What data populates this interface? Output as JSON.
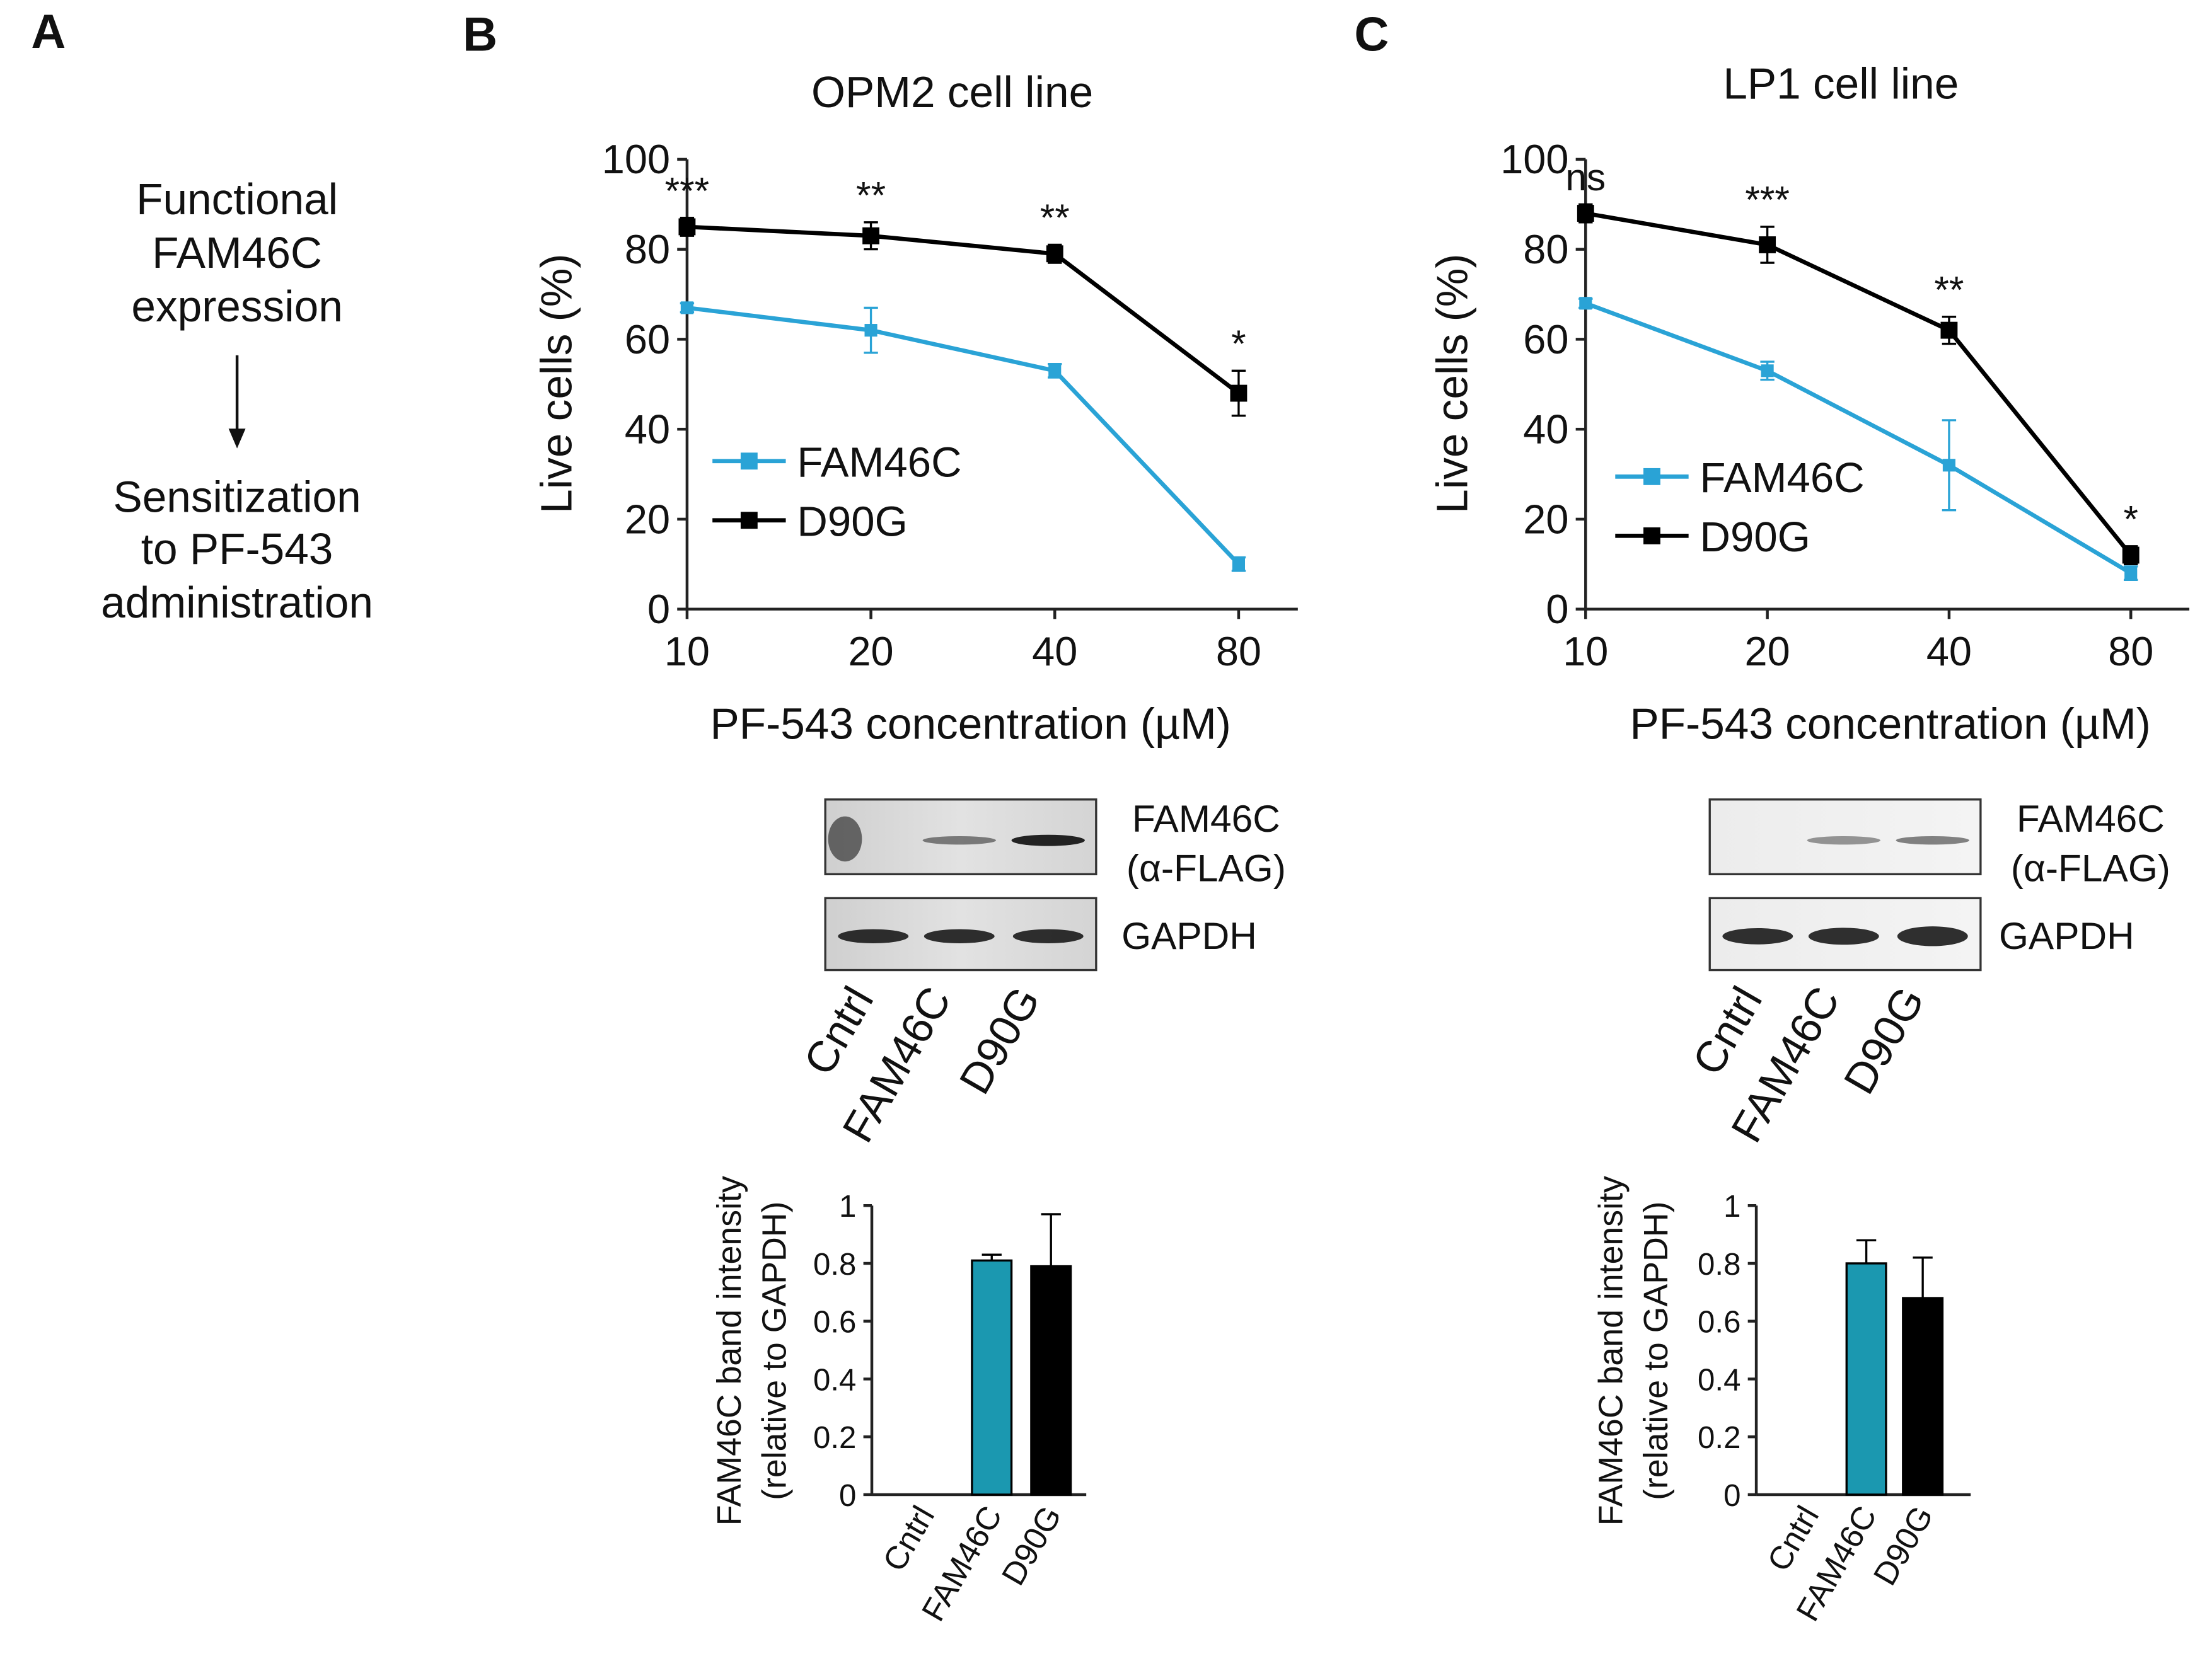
{
  "panel_labels": [
    "A",
    "B",
    "C"
  ],
  "panel_a": {
    "lines": [
      "Functional",
      "FAM46C",
      "expression",
      "Sensitization",
      "to PF-543",
      "administration"
    ]
  },
  "chart_data": [
    {
      "type": "line",
      "title": "OPM2 cell line",
      "x_label": "PF-543 concentration (µM)",
      "y_label": "Live cells (%)",
      "x": [
        10,
        20,
        40,
        80
      ],
      "xscale": "log",
      "xlim": [
        10,
        100
      ],
      "xticks": [
        10,
        20,
        40,
        80
      ],
      "ylim": [
        0,
        100
      ],
      "yticks": [
        0,
        20,
        40,
        60,
        80,
        100
      ],
      "series": [
        {
          "name": "FAM46C",
          "color": "#2aa3d6",
          "values": [
            67,
            62,
            53,
            10
          ],
          "errors": [
            1,
            5,
            1.5,
            1.5
          ]
        },
        {
          "name": "D90G",
          "color": "#000000",
          "values": [
            85,
            83,
            79,
            48
          ],
          "errors": [
            2,
            3,
            2,
            5
          ]
        }
      ],
      "annotations": [
        "***",
        "**",
        "**",
        "*"
      ]
    },
    {
      "type": "line",
      "title": "LP1 cell line",
      "x_label": "PF-543 concentration (µM)",
      "y_label": "Live cells (%)",
      "x": [
        10,
        20,
        40,
        80
      ],
      "xscale": "log",
      "xlim": [
        10,
        100
      ],
      "xticks": [
        10,
        20,
        40,
        80
      ],
      "ylim": [
        0,
        100
      ],
      "yticks": [
        0,
        20,
        40,
        60,
        80,
        100
      ],
      "series": [
        {
          "name": "FAM46C",
          "color": "#2aa3d6",
          "values": [
            68,
            53,
            32,
            8
          ],
          "errors": [
            1,
            2,
            10,
            1.5
          ]
        },
        {
          "name": "D90G",
          "color": "#000000",
          "values": [
            88,
            81,
            62,
            12
          ],
          "errors": [
            2,
            4,
            3,
            2
          ]
        }
      ],
      "annotations": [
        "ns",
        "***",
        "**",
        "*"
      ]
    },
    {
      "type": "bar",
      "y_label": [
        "FAM46C band intensity",
        "(relative to GAPDH)"
      ],
      "categories": [
        "Cntrl",
        "FAM46C",
        "D90G"
      ],
      "values": [
        0,
        0.81,
        0.79
      ],
      "errors": [
        null,
        0.02,
        0.18
      ],
      "colors": [
        null,
        "#1b98b0",
        "#000000"
      ],
      "ylim": [
        0,
        1
      ],
      "yticks": [
        0,
        0.2,
        0.4,
        0.6,
        0.8,
        1
      ]
    },
    {
      "type": "bar",
      "y_label": [
        "FAM46C band intensity",
        "(relative to GAPDH)"
      ],
      "categories": [
        "Cntrl",
        "FAM46C",
        "D90G"
      ],
      "values": [
        0,
        0.8,
        0.68
      ],
      "errors": [
        null,
        0.08,
        0.14
      ],
      "colors": [
        null,
        "#1b98b0",
        "#000000"
      ],
      "ylim": [
        0,
        1
      ],
      "yticks": [
        0,
        0.2,
        0.4,
        0.6,
        0.8,
        1
      ]
    }
  ],
  "blots": [
    {
      "target": [
        "FAM46C",
        "(α-FLAG)"
      ],
      "loading": "GAPDH",
      "lanes": [
        "Cntrl",
        "FAM46C",
        "D90G"
      ]
    },
    {
      "target": [
        "FAM46C",
        "(α-FLAG)"
      ],
      "loading": "GAPDH",
      "lanes": [
        "Cntrl",
        "FAM46C",
        "D90G"
      ]
    }
  ]
}
